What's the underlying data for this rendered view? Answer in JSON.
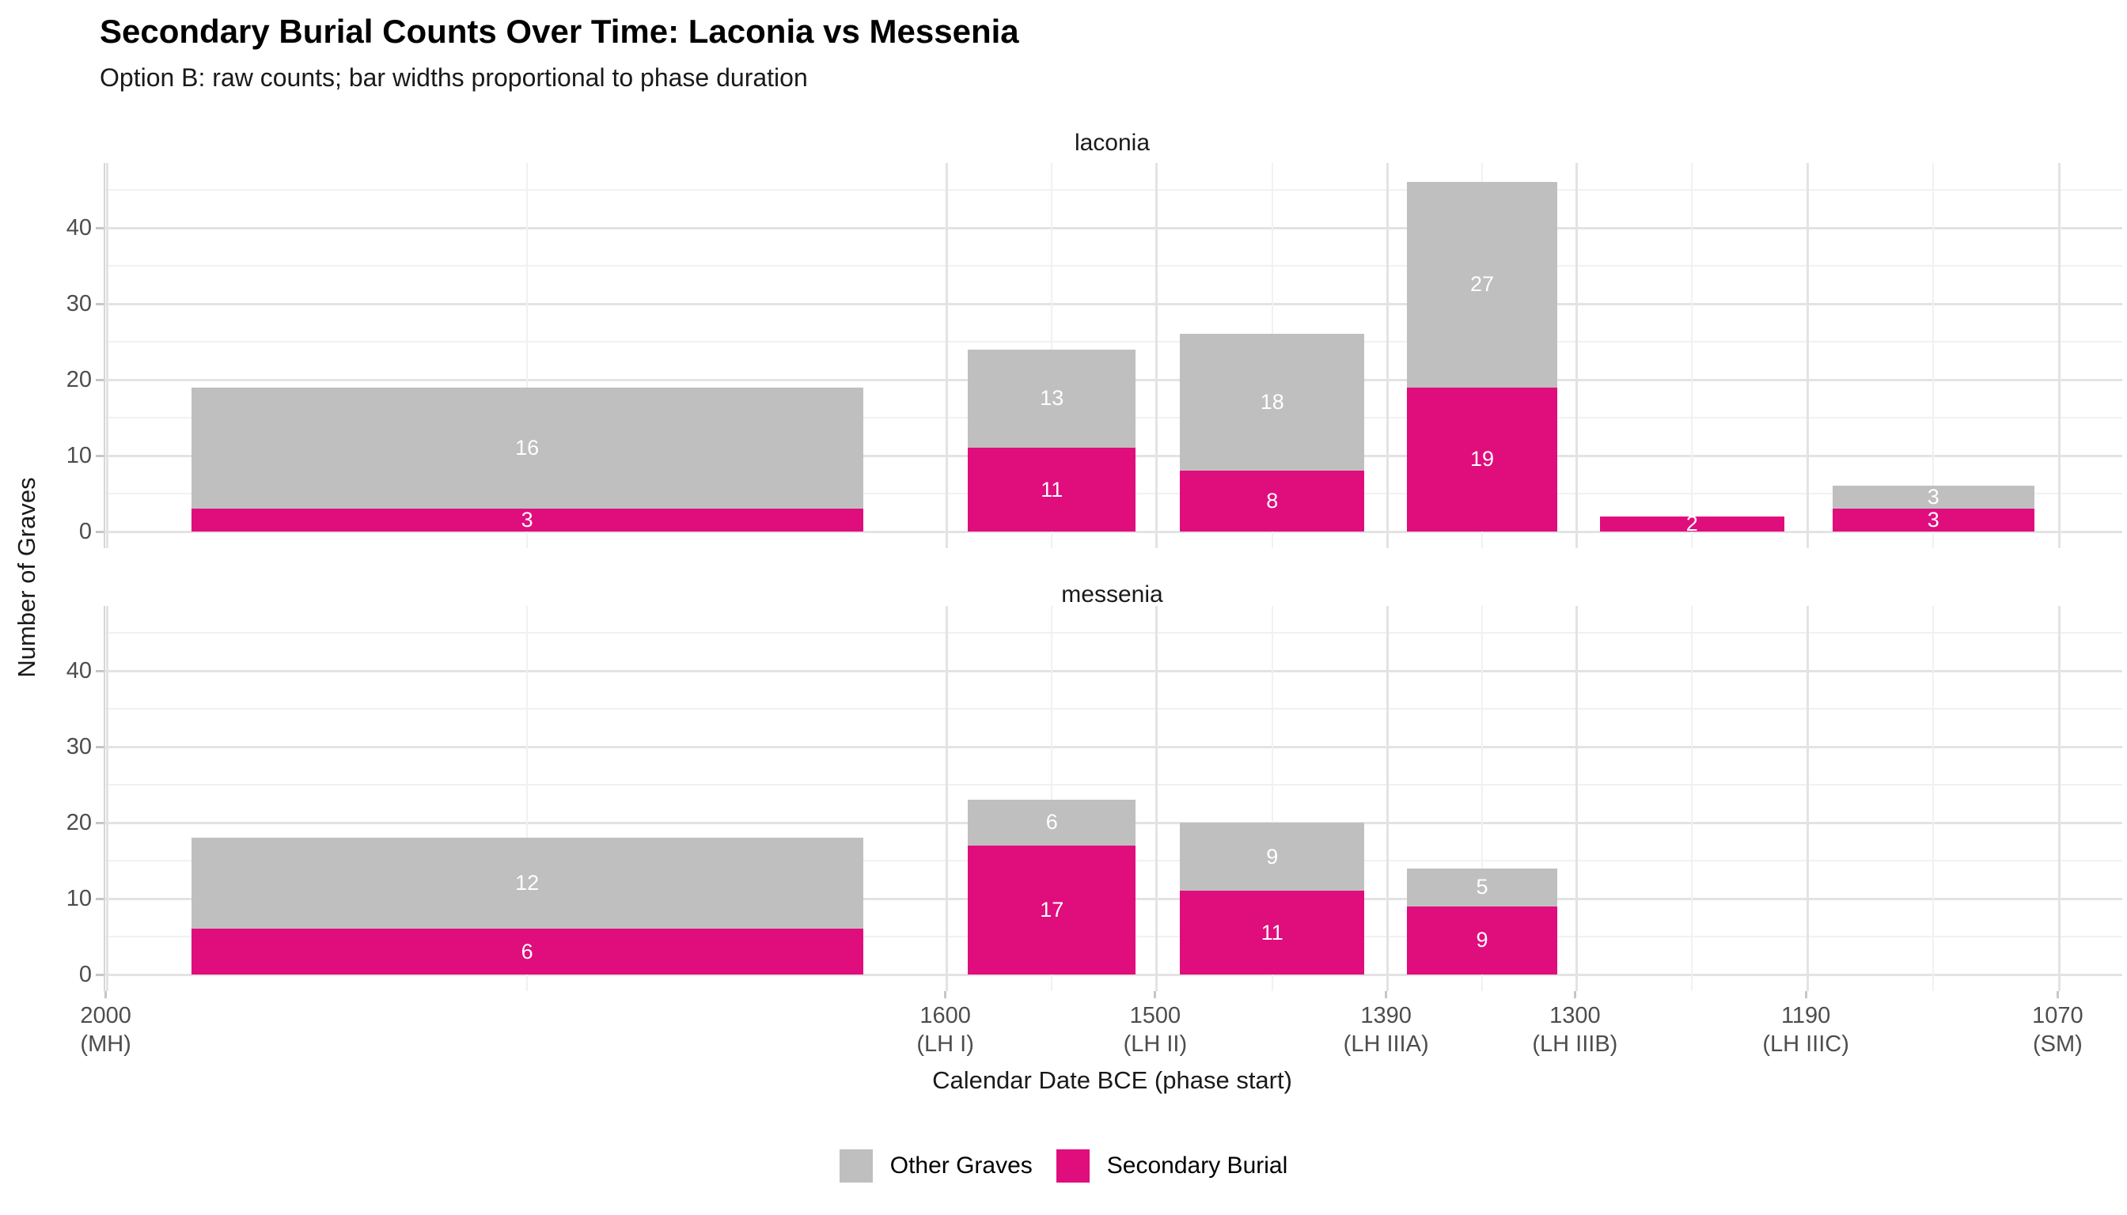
{
  "title": "Secondary Burial Counts Over Time: Laconia vs Messenia",
  "subtitle": "Option B: raw counts; bar widths proportional to phase duration",
  "legend": {
    "items": [
      {
        "label": "Other Graves",
        "color": "#bfbfbf"
      },
      {
        "label": "Secondary Burial",
        "color": "#e00d7d"
      }
    ]
  },
  "chart_data": {
    "type": "bar",
    "variant": "stacked",
    "title": "Secondary Burial Counts Over Time: Laconia vs Messenia",
    "subtitle": "Option B: raw counts; bar widths proportional to phase duration",
    "xlabel": "Calendar Date BCE (phase start)",
    "ylabel": "Number of Graves",
    "x_axis_reversed": true,
    "bar_width_fraction_of_duration": 0.8,
    "ylim": [
      0,
      48.5
    ],
    "y_ticks": [
      0,
      10,
      20,
      30,
      40
    ],
    "y_minor_ticks": [
      5,
      15,
      25,
      35,
      45
    ],
    "grid": true,
    "legend_position": "bottom",
    "bar_label_color": "#ffffff",
    "series": [
      {
        "name": "Other Graves",
        "key": "other_graves",
        "color": "#bfbfbf"
      },
      {
        "name": "Secondary Burial",
        "key": "secondary_burial",
        "color": "#e00d7d"
      }
    ],
    "x_ticks": [
      {
        "value": 2000,
        "label": "2000",
        "phase": "(MH)"
      },
      {
        "value": 1600,
        "label": "1600",
        "phase": "(LH I)"
      },
      {
        "value": 1500,
        "label": "1500",
        "phase": "(LH II)"
      },
      {
        "value": 1390,
        "label": "1390",
        "phase": "(LH IIIA)"
      },
      {
        "value": 1300,
        "label": "1300",
        "phase": "(LH IIIB)"
      },
      {
        "value": 1190,
        "label": "1190",
        "phase": "(LH IIIC)"
      },
      {
        "value": 1070,
        "label": "1070",
        "phase": "(SM)"
      }
    ],
    "facets": [
      {
        "label": "laconia",
        "bars": [
          {
            "phase": "MH",
            "start": 2000,
            "end": 1600,
            "secondary_burial": 3,
            "other_graves": 16
          },
          {
            "phase": "LH I",
            "start": 1600,
            "end": 1500,
            "secondary_burial": 11,
            "other_graves": 13
          },
          {
            "phase": "LH II",
            "start": 1500,
            "end": 1390,
            "secondary_burial": 8,
            "other_graves": 18
          },
          {
            "phase": "LH IIIA",
            "start": 1390,
            "end": 1300,
            "secondary_burial": 19,
            "other_graves": 27
          },
          {
            "phase": "LH IIIB",
            "start": 1300,
            "end": 1190,
            "secondary_burial": 2,
            "other_graves": 0
          },
          {
            "phase": "LH IIIC",
            "start": 1190,
            "end": 1070,
            "secondary_burial": 3,
            "other_graves": 3
          }
        ]
      },
      {
        "label": "messenia",
        "bars": [
          {
            "phase": "MH",
            "start": 2000,
            "end": 1600,
            "secondary_burial": 6,
            "other_graves": 12
          },
          {
            "phase": "LH I",
            "start": 1600,
            "end": 1500,
            "secondary_burial": 17,
            "other_graves": 6
          },
          {
            "phase": "LH II",
            "start": 1500,
            "end": 1390,
            "secondary_burial": 11,
            "other_graves": 9
          },
          {
            "phase": "LH IIIA",
            "start": 1390,
            "end": 1300,
            "secondary_burial": 9,
            "other_graves": 5
          }
        ]
      }
    ]
  }
}
